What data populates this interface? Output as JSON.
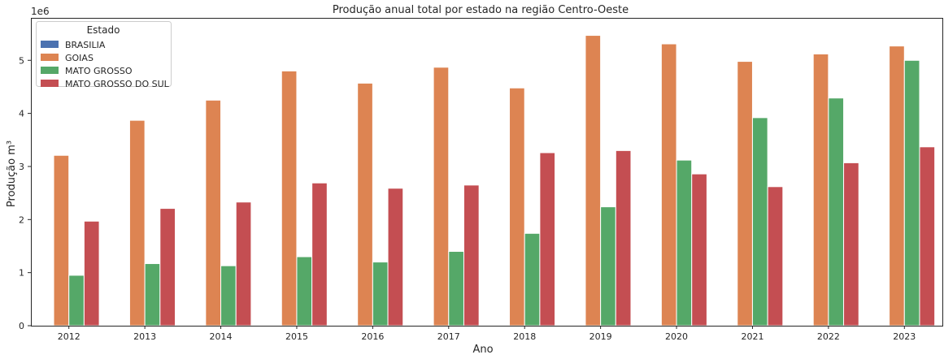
{
  "chart_data": {
    "type": "bar",
    "title": "Produção anual total por estado na região Centro-Oeste",
    "xlabel": "Ano",
    "ylabel": "Produção m³",
    "y_offset_label": "1e6",
    "y_scale": 1000000,
    "ylim": [
      0,
      5800000
    ],
    "yticks": [
      0,
      1,
      2,
      3,
      4,
      5
    ],
    "grid": false,
    "legend": {
      "title": "Estado",
      "placement": "top-left"
    },
    "categories": [
      "2012",
      "2013",
      "2014",
      "2015",
      "2016",
      "2017",
      "2018",
      "2019",
      "2020",
      "2021",
      "2022",
      "2023"
    ],
    "series": [
      {
        "name": "BRASILIA",
        "color": "#4c72b0",
        "values": [
          0,
          0,
          0,
          0,
          0,
          0,
          0,
          0,
          0,
          0,
          0,
          0
        ]
      },
      {
        "name": "GOIAS",
        "color": "#dd8452",
        "values": [
          3210000,
          3870000,
          4250000,
          4800000,
          4570000,
          4870000,
          4480000,
          5470000,
          5310000,
          4980000,
          5120000,
          5270000
        ]
      },
      {
        "name": "MATO GROSSO",
        "color": "#55a868",
        "values": [
          950000,
          1170000,
          1130000,
          1300000,
          1200000,
          1400000,
          1740000,
          2240000,
          3120000,
          3920000,
          4290000,
          5000000
        ]
      },
      {
        "name": "MATO GROSSO DO SUL",
        "color": "#c44e52",
        "values": [
          1970000,
          2210000,
          2330000,
          2690000,
          2590000,
          2650000,
          3260000,
          3300000,
          2860000,
          2620000,
          3070000,
          3370000
        ]
      }
    ]
  }
}
